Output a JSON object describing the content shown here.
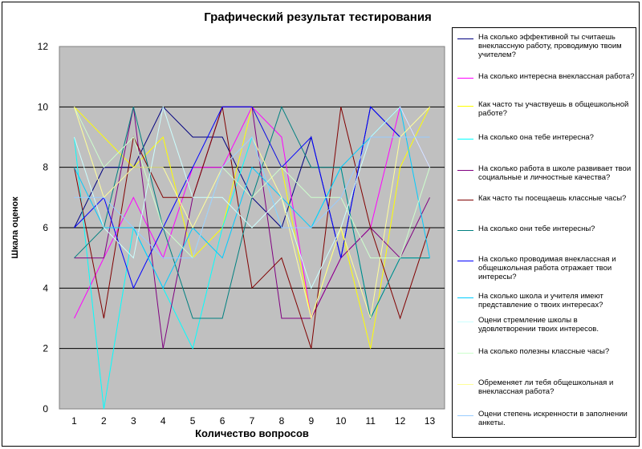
{
  "chart_data": {
    "type": "line",
    "title": "Графический результат тестирования",
    "xlabel": "Количество вопросов",
    "ylabel": "Шкала оценок",
    "categories": [
      "1",
      "2",
      "3",
      "4",
      "5",
      "6",
      "7",
      "8",
      "9",
      "10",
      "11",
      "12",
      "13"
    ],
    "ylim": [
      0,
      12
    ],
    "yticks": [
      "0",
      "2",
      "4",
      "6",
      "8",
      "10",
      "12"
    ],
    "grid": true,
    "legend_position": "right",
    "plot_background": "#c0c0c0",
    "series": [
      {
        "name": "На сколько эффективной ты считаешь внеклассную работу, проводимую твоим учителем?",
        "color": "#000080",
        "values": [
          6,
          8,
          8,
          10,
          9,
          9,
          7,
          6,
          9,
          5,
          10,
          9,
          9
        ]
      },
      {
        "name": "На сколько интересна внеклассная работа?",
        "color": "#ff00ff",
        "values": [
          3,
          5,
          7,
          5,
          8,
          8,
          10,
          9,
          3,
          5,
          6,
          10,
          8
        ]
      },
      {
        "name": "Как часто ты участвуешь в общешкольной работе?",
        "color": "#ffff00",
        "values": [
          10,
          9,
          8,
          9,
          5,
          6,
          10,
          8,
          3,
          6,
          2,
          8,
          10
        ]
      },
      {
        "name": "На сколько она тебе интересна?",
        "color": "#00ffff",
        "values": [
          9,
          0,
          6,
          4,
          2,
          6,
          9,
          6,
          6,
          8,
          3,
          5,
          5
        ]
      },
      {
        "name": "На сколько работа в школе развивает твои социальные и личностные качества?",
        "color": "#800080",
        "values": [
          5,
          5,
          10,
          2,
          7,
          10,
          10,
          3,
          3,
          5,
          6,
          5,
          7
        ]
      },
      {
        "name": "Как часто ты посещаешь классные часы?",
        "color": "#800000",
        "values": [
          8,
          3,
          9,
          7,
          7,
          10,
          4,
          5,
          2,
          10,
          6,
          3,
          6
        ]
      },
      {
        "name": "На сколько они тебе интересны?",
        "color": "#008080",
        "values": [
          5,
          6,
          10,
          6,
          3,
          3,
          7,
          10,
          8,
          8,
          3,
          5,
          5
        ]
      },
      {
        "name": "На сколько проводимая внеклассная и общешкольная работа отражает твои интересы?",
        "color": "#0000ff",
        "values": [
          6,
          7,
          4,
          6,
          8,
          10,
          10,
          8,
          9,
          5,
          10,
          9,
          9
        ]
      },
      {
        "name": "На сколько школа и учителя имеют представление о твоих интересах?",
        "color": "#00ccff",
        "values": [
          8,
          6,
          6,
          4,
          6,
          5,
          8,
          7,
          6,
          8,
          9,
          10,
          5
        ]
      },
      {
        "name": "Оцени стремление школы в удовлетворении твоих интересов.",
        "color": "#ccffff",
        "values": [
          9,
          6,
          5,
          10,
          7,
          7,
          6,
          7,
          4,
          6,
          9,
          10,
          8
        ]
      },
      {
        "name": "На сколько полезны классные часы?",
        "color": "#ccffcc",
        "values": [
          10,
          8,
          9,
          6,
          5,
          8,
          7,
          8,
          7,
          7,
          5,
          5,
          8
        ]
      },
      {
        "name": "Обременяет ли тебя общешкольная и внеклассная работа?",
        "color": "#ffff99",
        "values": [
          10,
          7,
          8,
          8,
          6,
          8,
          9,
          7,
          3,
          6,
          3,
          9,
          10
        ]
      },
      {
        "name": "Оцени степень искренности в заполнении анкеты.",
        "color": "#99ccff",
        "values": [
          7,
          7,
          6,
          5,
          5,
          8,
          9,
          6,
          6,
          7,
          9,
          9,
          9
        ]
      }
    ]
  }
}
